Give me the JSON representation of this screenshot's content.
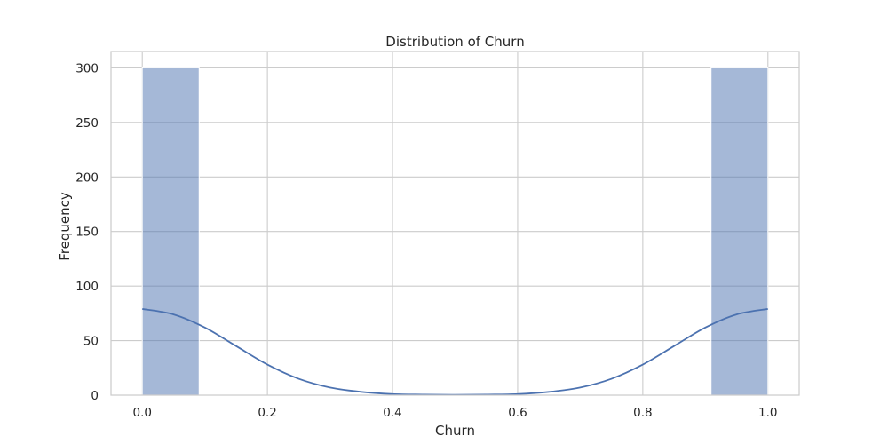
{
  "chart_data": {
    "type": "bar",
    "title": "Distribution of Churn",
    "xlabel": "Churn",
    "ylabel": "Frequency",
    "xlim": [
      -0.05,
      1.05
    ],
    "ylim": [
      0,
      315
    ],
    "xticks": [
      0.0,
      0.2,
      0.4,
      0.6,
      0.8,
      1.0
    ],
    "xtick_labels": [
      "0.0",
      "0.2",
      "0.4",
      "0.6",
      "0.8",
      "1.0"
    ],
    "yticks": [
      0,
      50,
      100,
      150,
      200,
      250,
      300
    ],
    "ytick_labels": [
      "0",
      "50",
      "100",
      "150",
      "200",
      "250",
      "300"
    ],
    "grid": true,
    "bins": [
      {
        "x0": 0.0,
        "x1": 0.0909,
        "count": 300
      },
      {
        "x0": 0.0909,
        "x1": 0.1818,
        "count": 0
      },
      {
        "x0": 0.1818,
        "x1": 0.2727,
        "count": 0
      },
      {
        "x0": 0.2727,
        "x1": 0.3636,
        "count": 0
      },
      {
        "x0": 0.3636,
        "x1": 0.4545,
        "count": 0
      },
      {
        "x0": 0.4545,
        "x1": 0.5455,
        "count": 0
      },
      {
        "x0": 0.5455,
        "x1": 0.6364,
        "count": 0
      },
      {
        "x0": 0.6364,
        "x1": 0.7273,
        "count": 0
      },
      {
        "x0": 0.7273,
        "x1": 0.8182,
        "count": 0
      },
      {
        "x0": 0.8182,
        "x1": 0.9091,
        "count": 0
      },
      {
        "x0": 0.9091,
        "x1": 1.0,
        "count": 300
      }
    ],
    "kde": {
      "x": [
        0.0,
        0.05,
        0.1,
        0.15,
        0.2,
        0.25,
        0.3,
        0.35,
        0.4,
        0.45,
        0.5,
        0.55,
        0.6,
        0.65,
        0.7,
        0.75,
        0.8,
        0.85,
        0.9,
        0.95,
        1.0
      ],
      "y": [
        79,
        74,
        62,
        45,
        28,
        15,
        7,
        3,
        1,
        0.5,
        0.3,
        0.5,
        1,
        3,
        7,
        15,
        28,
        45,
        62,
        74,
        79
      ]
    },
    "colors": {
      "bar_fill": "#4c72b0",
      "bar_opacity": 0.5,
      "kde_line": "#4c72b0",
      "grid": "#cccccc",
      "spine": "#cccccc"
    }
  }
}
